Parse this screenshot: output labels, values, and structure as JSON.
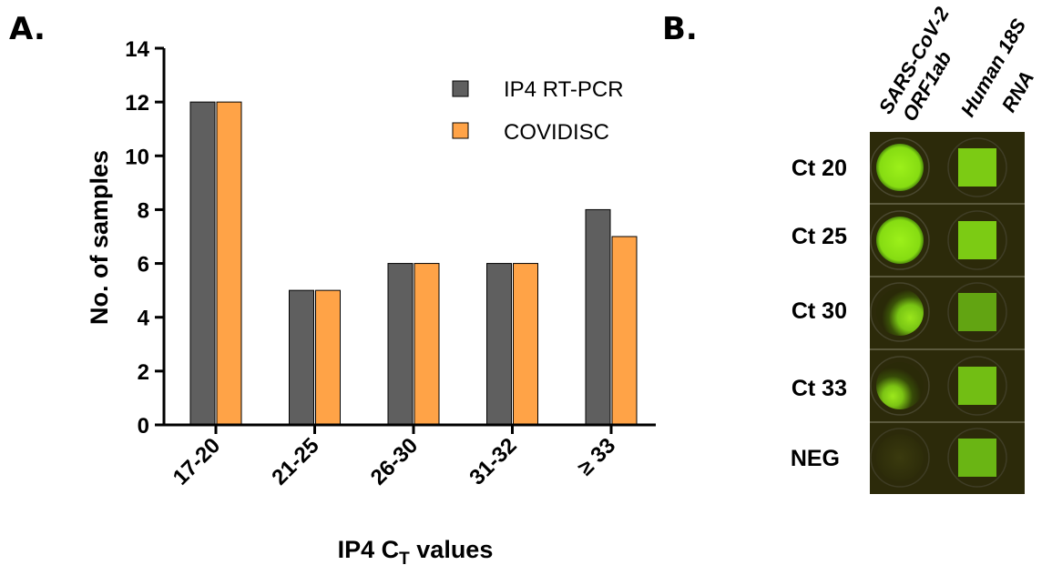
{
  "panels": {
    "a_label": "A.",
    "b_label": "B."
  },
  "colors": {
    "series1": "#5f5f5f",
    "series2": "#ffa347"
  },
  "chart_data": {
    "type": "bar",
    "categories": [
      "17-20",
      "21-25",
      "26-30",
      "31-32",
      "≥ 33"
    ],
    "series": [
      {
        "name": "IP4 RT-PCR",
        "values": [
          12,
          5,
          6,
          6,
          8
        ]
      },
      {
        "name": "COVIDISC",
        "values": [
          12,
          5,
          6,
          6,
          7
        ]
      }
    ],
    "ylabel": "No. of samples",
    "xlabel": {
      "main": "IP4 C",
      "sub": "T",
      "rest": " values"
    },
    "ylim": [
      0,
      14
    ],
    "yticks": [
      0,
      2,
      4,
      6,
      8,
      10,
      12,
      14
    ],
    "legend": "top-right",
    "grid": false
  },
  "gel": {
    "column_labels": [
      {
        "line1": "SARS-CoV-2",
        "line2": "ORF1ab"
      },
      {
        "line1": "Human 18S",
        "line2": "RNA"
      }
    ],
    "row_labels": [
      "Ct 20",
      "Ct 25",
      "Ct 30",
      "Ct 33",
      "NEG"
    ]
  }
}
